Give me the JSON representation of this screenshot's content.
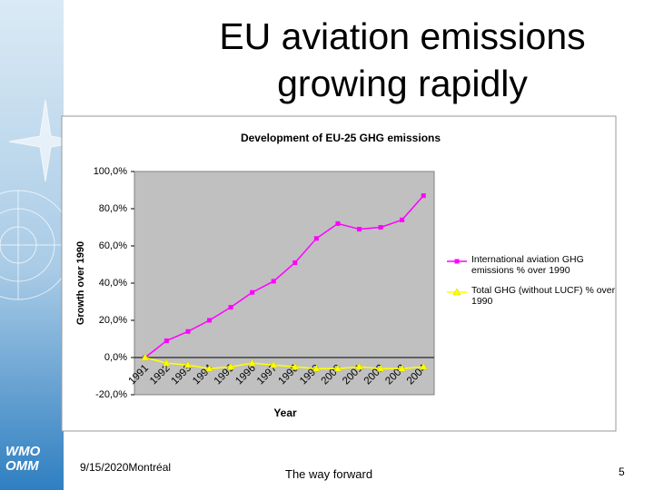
{
  "slide": {
    "title": "EU aviation emissions growing rapidly",
    "logo": [
      "WMO",
      "OMM"
    ],
    "date_place": "9/15/2020Montréal",
    "footer": "The way forward",
    "page": "5"
  },
  "chart_data": {
    "type": "line",
    "title": "Development of EU-25 GHG emissions",
    "x_label": "Year",
    "y_label": "Growth over 1990",
    "categories": [
      "1991",
      "1992",
      "1993",
      "1994",
      "1995",
      "1996",
      "1997",
      "1998",
      "1999",
      "2000",
      "2001",
      "2002",
      "2003",
      "2004"
    ],
    "series": [
      {
        "name": "International aviation GHG emissions % over 1990",
        "color": "#ff00ff",
        "marker": "square",
        "values": [
          0,
          9,
          14,
          20,
          27,
          35,
          41,
          51,
          64,
          72,
          69,
          70,
          74,
          87
        ]
      },
      {
        "name": "Total  GHG (without LUCF) % over 1990",
        "color": "#ffff00",
        "marker": "triangle",
        "values": [
          0,
          -3,
          -4,
          -6,
          -5,
          -3,
          -4,
          -5,
          -6,
          -6,
          -5,
          -6,
          -6,
          -5
        ]
      }
    ],
    "ylim": [
      -20,
      100
    ],
    "yticks": [
      {
        "value": 100,
        "label": "100,0%"
      },
      {
        "value": 80,
        "label": "80,0%"
      },
      {
        "value": 60,
        "label": "60,0%"
      },
      {
        "value": 40,
        "label": "40,0%"
      },
      {
        "value": 20,
        "label": "20,0%"
      },
      {
        "value": 0,
        "label": "0,0%"
      },
      {
        "value": -20,
        "label": "-20,0%"
      }
    ],
    "grid": false,
    "legend": "right",
    "plot_color": "#c0c0c0"
  }
}
